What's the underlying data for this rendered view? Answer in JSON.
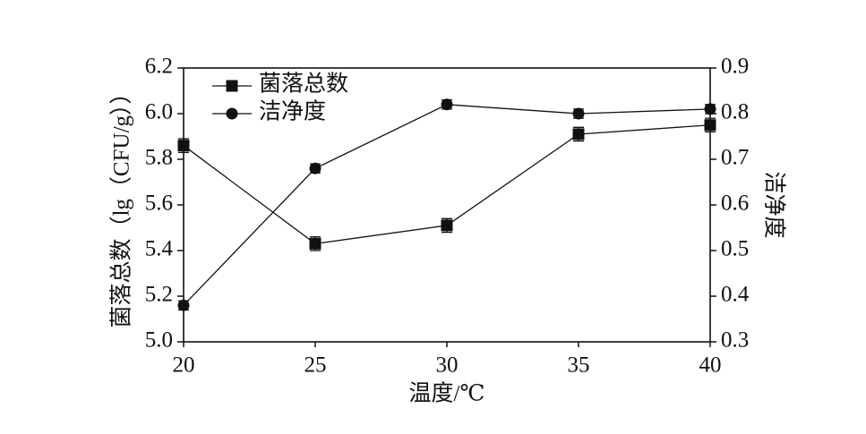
{
  "chart_data": {
    "type": "line",
    "x_label": "温度/℃",
    "y_label": "菌落总数（lg（CFU/g））",
    "y2_label": "洁净度",
    "x": [
      20,
      25,
      30,
      35,
      40
    ],
    "xlim": [
      20,
      40
    ],
    "xticks": [
      20,
      25,
      30,
      35,
      40
    ],
    "ylim": [
      5.0,
      6.2
    ],
    "yticks": [
      {
        "value": 5,
        "label": "5.0"
      },
      5.2,
      5.4,
      5.6,
      5.8,
      {
        "value": 6,
        "label": "6.0"
      },
      6.2
    ],
    "y2lim": [
      0.3,
      0.9
    ],
    "y2ticks": [
      0.3,
      0.4,
      0.5,
      0.6,
      0.7,
      0.8,
      0.9
    ],
    "legend": "upper left",
    "grid": false,
    "series": [
      {
        "name": "菌落总数",
        "color": "#111111",
        "marker": "square",
        "values": [
          5.86,
          5.43,
          5.51,
          5.91,
          5.95
        ],
        "errors": [
          0.03,
          0.03,
          0.03,
          0.03,
          0.03
        ]
      },
      {
        "name": "洁净度",
        "color": "#111111",
        "marker": "circle",
        "axis": "y2",
        "values": [
          0.38,
          0.68,
          0.82,
          0.8,
          0.81
        ],
        "errors": [
          0.01,
          0.01,
          0.01,
          0.01,
          0.01
        ]
      }
    ]
  }
}
